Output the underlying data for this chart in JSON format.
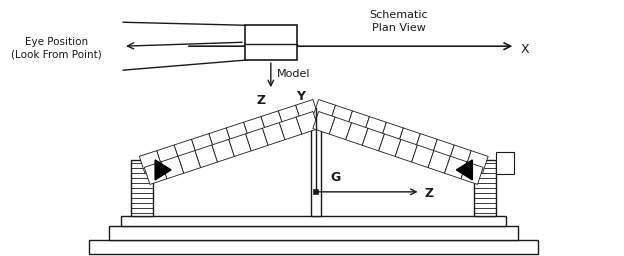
{
  "bg_color": "#ffffff",
  "lc": "#1a1a1a",
  "schematic_label": "Schematic\nPlan View",
  "eye_label": "Eye Position\n(Look From Point)",
  "model_label": "Model",
  "x_label": "X",
  "z_top_label": "Z",
  "y_top_label": "Y",
  "g_label": "G",
  "z_bot_label": "Z",
  "figw": 6.24,
  "figh": 2.56,
  "dpi": 100
}
